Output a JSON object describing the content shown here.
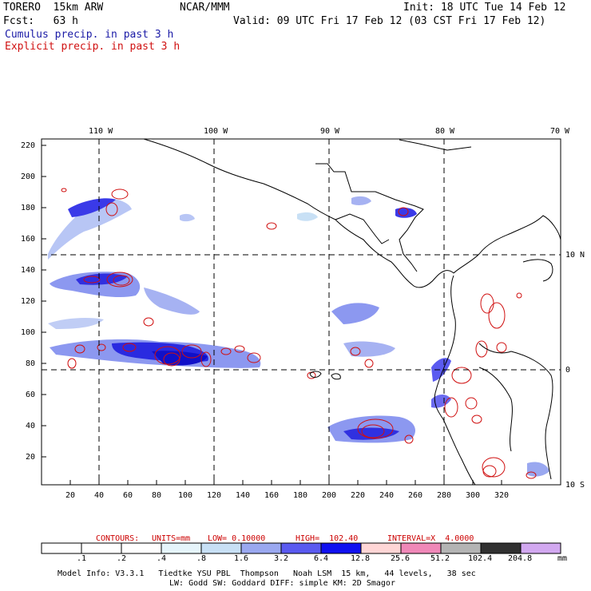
{
  "header": {
    "model": "TORERO  15km ARW",
    "org": "NCAR/MMM",
    "init": "Init: 18 UTC Tue 14 Feb 12",
    "fcst": "Fcst:   63 h",
    "valid": "Valid: 09 UTC Fri 17 Feb 12 (03 CST Fri 17 Feb 12)",
    "cumulus": "Cumulus precip. in past 3 h",
    "explicit": "Explicit precip. in past 3 h"
  },
  "axes": {
    "lon_labels": [
      "110 W",
      "100 W",
      "90 W",
      "80 W",
      "70 W"
    ],
    "lat_labels": [
      "10 N",
      "0",
      "10 S"
    ],
    "y_ticks": [
      "220",
      "200",
      "180",
      "160",
      "140",
      "120",
      "100",
      "80",
      "60",
      "40",
      "20"
    ],
    "x_ticks": [
      "20",
      "40",
      "60",
      "80",
      "100",
      "120",
      "140",
      "160",
      "180",
      "200",
      "220",
      "240",
      "260",
      "280",
      "300",
      "320"
    ]
  },
  "contours": {
    "label": "CONTOURS:",
    "units": "UNITS=mm",
    "low": "LOW= 0.10000",
    "high": "HIGH=  102.40",
    "interval": "INTERVAL=X  4.0000"
  },
  "colorbar": {
    "unit": "mm",
    "labels": [
      ".1",
      ".2",
      ".4",
      ".8",
      "1.6",
      "3.2",
      "6.4",
      "12.8",
      "25.6",
      "51.2",
      "102.4",
      "204.8"
    ],
    "colors": [
      "#ffffff",
      "#ffffff",
      "#ffffff",
      "#e6f5fb",
      "#c8e0f5",
      "#9aa8f0",
      "#5a5af0",
      "#1010f0",
      "#ffd6d6",
      "#f088b8",
      "#b4b4b4",
      "#303030",
      "#d2a8f0"
    ]
  },
  "footer": {
    "line1": "Model Info: V3.3.1   Tiedtke YSU PBL  Thompson   Noah LSM  15 km,   44 levels,   38 sec",
    "line2": "LW: Godd SW: Goddard DIFF: simple KM: 2D Smagor"
  }
}
